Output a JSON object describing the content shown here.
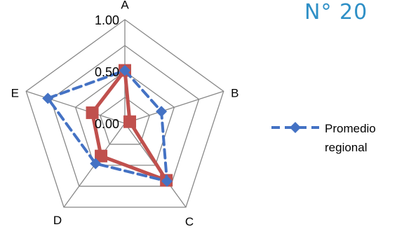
{
  "title": "N° 20",
  "chart_data": {
    "type": "radar",
    "axes": [
      "A",
      "B",
      "C",
      "D",
      "E"
    ],
    "rlim": [
      0,
      1
    ],
    "ticks": [
      {
        "value": 0.0,
        "label": "0.00"
      },
      {
        "value": 0.5,
        "label": "0.50"
      },
      {
        "value": 1.0,
        "label": "1.00"
      }
    ],
    "series": [
      {
        "name": "Promedio regional",
        "legend_lines": [
          "Promedio",
          "regional"
        ],
        "values": [
          0.51,
          0.37,
          0.69,
          0.48,
          0.78
        ],
        "color": "#4472C4",
        "line": "dashed",
        "marker": "diamond"
      },
      {
        "name": "",
        "values": [
          0.51,
          0.05,
          0.68,
          0.39,
          0.33
        ],
        "color": "#C0504D",
        "line": "solid",
        "marker": "square"
      }
    ],
    "grid": true,
    "legend": "right"
  },
  "colors": {
    "grid": "#888888",
    "title": "#2E8FC6"
  }
}
